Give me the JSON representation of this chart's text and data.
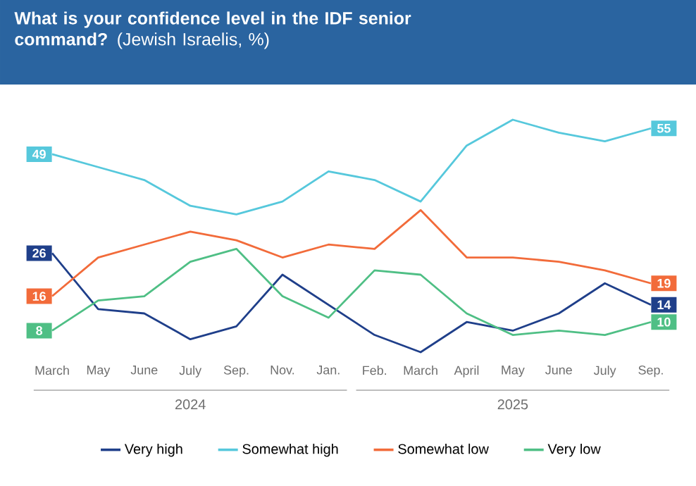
{
  "chart_data": {
    "type": "line",
    "title": "What is your confidence level in the IDF senior command?",
    "subtitle": "(Jewish Israelis, %)",
    "categories": [
      "March",
      "May",
      "June",
      "July",
      "Sep.",
      "Nov.",
      "Jan.",
      "Feb.",
      "March",
      "April",
      "May",
      "June",
      "July",
      "Sep."
    ],
    "annotations": [
      "2024",
      "2025"
    ],
    "tick_labels": "x",
    "legend": "bottom",
    "line_style": "solid",
    "series": [
      {
        "name": "Very high",
        "color": "#1f3f8a",
        "values": [
          26,
          13,
          12,
          6,
          9,
          21,
          14,
          7,
          3,
          10,
          8,
          12,
          19,
          14
        ],
        "value_labels": [
          "26",
          null,
          null,
          null,
          null,
          null,
          null,
          null,
          null,
          null,
          null,
          null,
          null,
          "14"
        ]
      },
      {
        "name": "Somewhat high",
        "color": "#56c8dc",
        "values": [
          49,
          46,
          43,
          37,
          35,
          38,
          45,
          43,
          38,
          51,
          57,
          54,
          52,
          55
        ],
        "value_labels": [
          "49",
          null,
          null,
          null,
          null,
          null,
          null,
          null,
          null,
          null,
          null,
          null,
          null,
          "55"
        ]
      },
      {
        "name": "Somewhat low",
        "color": "#f26b3a",
        "values": [
          16,
          25,
          28,
          31,
          29,
          25,
          28,
          27,
          36,
          25,
          25,
          24,
          22,
          19
        ],
        "value_labels": [
          "16",
          null,
          null,
          null,
          null,
          null,
          null,
          null,
          null,
          null,
          null,
          null,
          null,
          "19"
        ]
      },
      {
        "name": "Very low",
        "color": "#4fbf85",
        "values": [
          8,
          15,
          16,
          24,
          27,
          16,
          11,
          22,
          21,
          12,
          7,
          8,
          7,
          10
        ],
        "value_labels": [
          "8",
          null,
          null,
          null,
          null,
          null,
          null,
          null,
          null,
          null,
          null,
          null,
          null,
          "10"
        ]
      }
    ]
  }
}
